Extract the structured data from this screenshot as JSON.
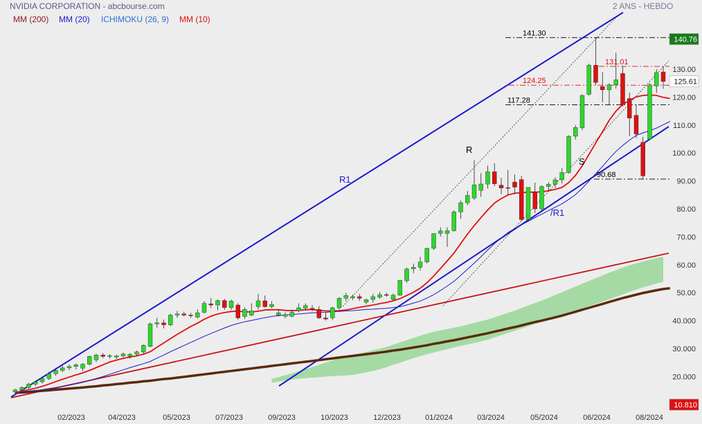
{
  "header": {
    "title": "NVIDIA CORPORATION - abcbourse.com",
    "period": "2 ANS - HEBDO"
  },
  "legend": [
    {
      "label": "MM (200)",
      "color": "#8b1a1a"
    },
    {
      "label": "MM (20)",
      "color": "#1a1acc"
    },
    {
      "label": "ICHIMOKU (26, 9)",
      "color": "#2a6fd6"
    },
    {
      "label": "MM (10)",
      "color": "#e01010"
    }
  ],
  "chart_data": {
    "type": "candlestick",
    "y_axis": {
      "ticks": [
        "130.00",
        "120.00",
        "110.00",
        "100.00",
        "90.00",
        "80.00",
        "70.00",
        "60.00",
        "50.00",
        "40.000",
        "30.000",
        "20.000"
      ],
      "tick_values": [
        130,
        120,
        110,
        100,
        90,
        80,
        70,
        60,
        50,
        40,
        30,
        20
      ],
      "scale": "linear"
    },
    "x_axis": {
      "ticks": [
        "02/2023",
        "04/2023",
        "05/2023",
        "07/2023",
        "09/2023",
        "10/2023",
        "12/2023",
        "01/2024",
        "03/2024",
        "05/2024",
        "06/2024",
        "08/2024"
      ]
    },
    "price_badges": [
      {
        "label": "140.76",
        "value": 140.76,
        "bg": "#1a7a1a"
      },
      {
        "label": "125.61",
        "value": 125.61,
        "bg": "#ffffff"
      },
      {
        "label": "10.810",
        "value": 10.81,
        "bg": "#dd1111"
      }
    ],
    "levels": [
      {
        "label": "141.30",
        "value": 141.3,
        "color": "#000000"
      },
      {
        "label": "131.01",
        "value": 131.01,
        "color": "#dd1111"
      },
      {
        "label": "124.25",
        "value": 124.25,
        "color": "#dd1111"
      },
      {
        "label": "117.28",
        "value": 117.28,
        "color": "#000000"
      },
      {
        "label": "90.68",
        "value": 90.68,
        "color": "#000000"
      }
    ],
    "annotations": [
      {
        "label": "R1",
        "color": "#1a1acc"
      },
      {
        "label": "R",
        "color": "#000000"
      },
      {
        "label": "S",
        "color": "#000000"
      },
      {
        "label": "/R1",
        "color": "#1a1acc"
      }
    ],
    "candles": [
      {
        "o": 14.5,
        "h": 15.6,
        "l": 14.0,
        "c": 15.2
      },
      {
        "o": 15.2,
        "h": 16.5,
        "l": 14.8,
        "c": 16.1
      },
      {
        "o": 16.1,
        "h": 17.8,
        "l": 15.6,
        "c": 17.3
      },
      {
        "o": 17.3,
        "h": 18.5,
        "l": 16.6,
        "c": 18.1
      },
      {
        "o": 18.1,
        "h": 19.8,
        "l": 17.5,
        "c": 19.3
      },
      {
        "o": 19.3,
        "h": 21.6,
        "l": 18.8,
        "c": 21.0
      },
      {
        "o": 21.0,
        "h": 22.8,
        "l": 20.3,
        "c": 22.2
      },
      {
        "o": 22.2,
        "h": 23.8,
        "l": 21.6,
        "c": 23.1
      },
      {
        "o": 23.1,
        "h": 24.3,
        "l": 22.3,
        "c": 23.6
      },
      {
        "o": 23.6,
        "h": 24.7,
        "l": 22.6,
        "c": 24.2
      },
      {
        "o": 23.0,
        "h": 24.8,
        "l": 22.0,
        "c": 24.4
      },
      {
        "o": 24.4,
        "h": 27.5,
        "l": 24.0,
        "c": 27.2
      },
      {
        "o": 26.0,
        "h": 28.2,
        "l": 25.2,
        "c": 27.7
      },
      {
        "o": 27.7,
        "h": 28.4,
        "l": 26.6,
        "c": 27.2
      },
      {
        "o": 27.2,
        "h": 28.0,
        "l": 26.4,
        "c": 27.5
      },
      {
        "o": 27.0,
        "h": 27.8,
        "l": 26.3,
        "c": 27.4
      },
      {
        "o": 27.4,
        "h": 28.6,
        "l": 26.8,
        "c": 28.1
      },
      {
        "o": 27.2,
        "h": 28.4,
        "l": 26.4,
        "c": 28.0
      },
      {
        "o": 28.0,
        "h": 29.3,
        "l": 27.5,
        "c": 28.8
      },
      {
        "o": 28.8,
        "h": 31.5,
        "l": 28.2,
        "c": 31.2
      },
      {
        "o": 30.8,
        "h": 39.4,
        "l": 30.4,
        "c": 38.8
      },
      {
        "o": 38.8,
        "h": 41.0,
        "l": 37.5,
        "c": 39.2
      },
      {
        "o": 39.2,
        "h": 40.4,
        "l": 37.2,
        "c": 38.5
      },
      {
        "o": 38.5,
        "h": 42.5,
        "l": 38.0,
        "c": 42.0
      },
      {
        "o": 42.0,
        "h": 43.5,
        "l": 41.0,
        "c": 42.4
      },
      {
        "o": 42.4,
        "h": 43.2,
        "l": 41.5,
        "c": 42.0
      },
      {
        "o": 42.0,
        "h": 42.8,
        "l": 41.0,
        "c": 41.8
      },
      {
        "o": 41.3,
        "h": 44.0,
        "l": 40.8,
        "c": 42.8
      },
      {
        "o": 43.0,
        "h": 47.0,
        "l": 42.5,
        "c": 46.2
      },
      {
        "o": 46.0,
        "h": 48.1,
        "l": 44.5,
        "c": 45.6
      },
      {
        "o": 45.6,
        "h": 47.6,
        "l": 43.7,
        "c": 47.2
      },
      {
        "o": 47.2,
        "h": 47.8,
        "l": 43.8,
        "c": 44.7
      },
      {
        "o": 44.7,
        "h": 47.5,
        "l": 43.9,
        "c": 47.0
      },
      {
        "o": 45.6,
        "h": 46.3,
        "l": 40.3,
        "c": 41.0
      },
      {
        "o": 41.5,
        "h": 44.7,
        "l": 40.6,
        "c": 44.0
      },
      {
        "o": 42.0,
        "h": 46.2,
        "l": 41.6,
        "c": 43.5
      },
      {
        "o": 45.0,
        "h": 49.6,
        "l": 44.0,
        "c": 47.1
      },
      {
        "o": 47.1,
        "h": 49.0,
        "l": 44.7,
        "c": 45.0
      },
      {
        "o": 45.0,
        "h": 47.0,
        "l": 44.5,
        "c": 45.8
      },
      {
        "o": 42.0,
        "h": 44.0,
        "l": 41.5,
        "c": 42.8
      },
      {
        "o": 41.6,
        "h": 43.0,
        "l": 40.9,
        "c": 42.2
      },
      {
        "o": 41.6,
        "h": 44.0,
        "l": 41.2,
        "c": 43.0
      },
      {
        "o": 43.6,
        "h": 46.2,
        "l": 43.0,
        "c": 44.6
      },
      {
        "o": 44.5,
        "h": 46.2,
        "l": 43.7,
        "c": 45.4
      },
      {
        "o": 44.4,
        "h": 45.6,
        "l": 43.4,
        "c": 44.0
      },
      {
        "o": 44.0,
        "h": 45.2,
        "l": 40.6,
        "c": 41.0
      },
      {
        "o": 41.0,
        "h": 42.8,
        "l": 40.0,
        "c": 40.6
      },
      {
        "o": 41.0,
        "h": 45.0,
        "l": 40.2,
        "c": 44.6
      },
      {
        "o": 44.6,
        "h": 48.4,
        "l": 44.0,
        "c": 48.0
      },
      {
        "o": 48.0,
        "h": 50.0,
        "l": 47.0,
        "c": 49.0
      },
      {
        "o": 48.2,
        "h": 49.3,
        "l": 47.4,
        "c": 48.6
      },
      {
        "o": 48.6,
        "h": 49.6,
        "l": 47.1,
        "c": 48.0
      },
      {
        "o": 46.6,
        "h": 47.9,
        "l": 45.8,
        "c": 47.5
      },
      {
        "o": 47.6,
        "h": 49.6,
        "l": 46.5,
        "c": 48.6
      },
      {
        "o": 48.4,
        "h": 50.3,
        "l": 47.8,
        "c": 49.3
      },
      {
        "o": 49.3,
        "h": 50.0,
        "l": 48.5,
        "c": 49.1
      },
      {
        "o": 47.6,
        "h": 49.7,
        "l": 47.2,
        "c": 49.1
      },
      {
        "o": 49.1,
        "h": 54.6,
        "l": 48.9,
        "c": 54.4
      },
      {
        "o": 54.3,
        "h": 59.0,
        "l": 53.5,
        "c": 58.5
      },
      {
        "o": 58.5,
        "h": 60.4,
        "l": 57.0,
        "c": 59.1
      },
      {
        "o": 59.1,
        "h": 62.8,
        "l": 58.0,
        "c": 61.0
      },
      {
        "o": 61.0,
        "h": 66.1,
        "l": 60.5,
        "c": 65.9
      },
      {
        "o": 65.9,
        "h": 70.7,
        "l": 65.3,
        "c": 71.2
      },
      {
        "o": 71.2,
        "h": 73.4,
        "l": 70.1,
        "c": 72.1
      },
      {
        "o": 71.2,
        "h": 73.4,
        "l": 66.4,
        "c": 72.2
      },
      {
        "o": 72.2,
        "h": 79.5,
        "l": 71.9,
        "c": 78.9
      },
      {
        "o": 78.9,
        "h": 83.0,
        "l": 76.4,
        "c": 82.2
      },
      {
        "o": 82.2,
        "h": 86.4,
        "l": 81.3,
        "c": 84.8
      },
      {
        "o": 83.9,
        "h": 97.4,
        "l": 83.2,
        "c": 88.6
      },
      {
        "o": 86.6,
        "h": 92.8,
        "l": 84.3,
        "c": 88.9
      },
      {
        "o": 88.9,
        "h": 95.5,
        "l": 87.3,
        "c": 93.3
      },
      {
        "o": 93.3,
        "h": 96.3,
        "l": 88.1,
        "c": 89.0
      },
      {
        "o": 88.5,
        "h": 91.1,
        "l": 85.3,
        "c": 87.5
      },
      {
        "o": 87.6,
        "h": 93.9,
        "l": 85.0,
        "c": 87.5
      },
      {
        "o": 89.6,
        "h": 92.3,
        "l": 85.3,
        "c": 87.8
      },
      {
        "o": 90.5,
        "h": 91.8,
        "l": 75.6,
        "c": 76.2
      },
      {
        "o": 76.2,
        "h": 87.7,
        "l": 75.7,
        "c": 87.7
      },
      {
        "o": 86.0,
        "h": 89.4,
        "l": 78.5,
        "c": 80.0
      },
      {
        "o": 80.0,
        "h": 88.4,
        "l": 79.0,
        "c": 88.0
      },
      {
        "o": 88.0,
        "h": 89.5,
        "l": 86.1,
        "c": 88.8
      },
      {
        "o": 88.8,
        "h": 91.3,
        "l": 87.5,
        "c": 90.4
      },
      {
        "o": 90.4,
        "h": 94.6,
        "l": 89.1,
        "c": 93.0
      },
      {
        "o": 93.0,
        "h": 106.3,
        "l": 92.7,
        "c": 106.0
      },
      {
        "o": 106.0,
        "h": 110.0,
        "l": 104.8,
        "c": 109.1
      },
      {
        "o": 109.0,
        "h": 121.0,
        "l": 108.2,
        "c": 120.6
      },
      {
        "o": 121.0,
        "h": 132.0,
        "l": 120.5,
        "c": 131.4
      },
      {
        "o": 131.4,
        "h": 141.3,
        "l": 124.3,
        "c": 125.2
      },
      {
        "o": 123.8,
        "h": 128.9,
        "l": 118.1,
        "c": 122.6
      },
      {
        "o": 122.6,
        "h": 125.0,
        "l": 117.1,
        "c": 124.4
      },
      {
        "o": 124.4,
        "h": 135.9,
        "l": 123.0,
        "c": 126.2
      },
      {
        "o": 128.5,
        "h": 131.0,
        "l": 116.7,
        "c": 117.3
      },
      {
        "o": 119.5,
        "h": 121.6,
        "l": 106.0,
        "c": 112.5
      },
      {
        "o": 113.5,
        "h": 117.4,
        "l": 105.3,
        "c": 106.8
      },
      {
        "o": 103.8,
        "h": 105.8,
        "l": 90.7,
        "c": 91.8
      },
      {
        "o": 105.0,
        "h": 125.0,
        "l": 104.8,
        "c": 124.4
      },
      {
        "o": 124.0,
        "h": 130.0,
        "l": 121.5,
        "c": 128.8
      },
      {
        "o": 129.0,
        "h": 131.0,
        "l": 123.0,
        "c": 125.6
      }
    ],
    "ma10": [
      14.2,
      14.8,
      15.3,
      15.8,
      16.5,
      17.3,
      18.2,
      19.0,
      19.8,
      20.6,
      21.3,
      22.2,
      23.2,
      24.2,
      25.2,
      25.9,
      26.5,
      27.0,
      27.4,
      28.0,
      28.9,
      30.5,
      32.0,
      33.6,
      35.1,
      36.5,
      37.9,
      39.1,
      40.5,
      41.6,
      42.4,
      42.9,
      43.3,
      43.4,
      43.2,
      43.1,
      43.4,
      43.8,
      43.9,
      43.9,
      43.7,
      43.6,
      43.7,
      43.9,
      44.0,
      43.7,
      43.5,
      43.5,
      43.6,
      43.8,
      44.3,
      44.8,
      45.2,
      45.6,
      46.1,
      46.5,
      47.1,
      47.9,
      49.0,
      50.2,
      51.6,
      53.6,
      56.0,
      58.7,
      61.4,
      64.2,
      67.6,
      71.0,
      74.0,
      76.9,
      79.6,
      82.1,
      83.7,
      85.0,
      85.6,
      85.8,
      86.0,
      86.0,
      86.1,
      86.5,
      87.0,
      87.7,
      89.4,
      92.0,
      95.4,
      99.5,
      103.6,
      107.6,
      111.7,
      115.0,
      117.4,
      118.8,
      120.1,
      120.6,
      120.8,
      120.6,
      119.9,
      119.5
    ],
    "ma20": [
      14.0,
      14.3,
      14.6,
      14.9,
      15.3,
      15.7,
      16.1,
      16.5,
      16.9,
      17.4,
      17.9,
      18.6,
      19.3,
      20.0,
      20.8,
      21.6,
      22.4,
      23.2,
      23.9,
      24.6,
      25.4,
      26.6,
      27.7,
      28.9,
      30.0,
      31.1,
      32.2,
      33.3,
      34.4,
      35.4,
      36.4,
      37.4,
      38.3,
      39.0,
      39.6,
      40.1,
      40.6,
      41.1,
      41.5,
      41.8,
      42.0,
      42.2,
      42.4,
      42.6,
      42.8,
      42.9,
      43.0,
      43.2,
      43.3,
      43.5,
      43.6,
      43.8,
      44.0,
      44.1,
      44.3,
      44.4,
      44.7,
      45.0,
      45.6,
      46.3,
      47.0,
      48.1,
      49.3,
      50.8,
      52.4,
      54.1,
      56.2,
      58.4,
      60.6,
      62.9,
      65.3,
      67.6,
      69.6,
      71.5,
      73.0,
      74.3,
      75.6,
      76.9,
      78.1,
      79.4,
      80.6,
      81.8,
      83.4,
      85.1,
      87.4,
      90.0,
      92.6,
      95.2,
      98.0,
      100.6,
      102.7,
      104.6,
      106.3,
      107.2,
      108.0,
      108.9,
      110.1,
      111.3
    ],
    "ma200": [
      14.2,
      14.3,
      14.5,
      14.7,
      14.9,
      15.1,
      15.3,
      15.5,
      15.7,
      15.9,
      16.1,
      16.3,
      16.5,
      16.8,
      17.0,
      17.3,
      17.5,
      17.8,
      18.0,
      18.3,
      18.5,
      18.8,
      19.1,
      19.3,
      19.6,
      19.9,
      20.2,
      20.5,
      20.8,
      21.1,
      21.4,
      21.7,
      22.0,
      22.3,
      22.6,
      22.9,
      23.2,
      23.5,
      23.8,
      24.1,
      24.4,
      24.7,
      25.0,
      25.3,
      25.6,
      25.9,
      26.2,
      26.5,
      26.8,
      27.1,
      27.4,
      27.7,
      28.0,
      28.3,
      28.6,
      28.9,
      29.3,
      29.6,
      30.0,
      30.4,
      30.8,
      31.2,
      31.7,
      32.1,
      32.6,
      33.0,
      33.5,
      34.0,
      34.5,
      35.0,
      35.5,
      36.1,
      36.6,
      37.2,
      37.7,
      38.3,
      38.9,
      39.5,
      40.0,
      40.6,
      41.2,
      41.8,
      42.5,
      43.2,
      43.9,
      44.6,
      45.3,
      46.0,
      46.7,
      47.4,
      48.1,
      48.7,
      49.3,
      49.9,
      50.4,
      50.9,
      51.3,
      51.6
    ],
    "cloud_top": [
      null,
      null,
      null,
      null,
      null,
      null,
      null,
      null,
      null,
      null,
      null,
      null,
      null,
      null,
      null,
      null,
      null,
      null,
      null,
      null,
      null,
      null,
      null,
      null,
      null,
      null,
      null,
      null,
      null,
      null,
      null,
      null,
      null,
      null,
      null,
      null,
      null,
      null,
      19.2,
      19.8,
      20.5,
      21.2,
      21.9,
      22.7,
      23.4,
      24.2,
      25.0,
      25.8,
      26.6,
      27.2,
      27.8,
      28.3,
      28.8,
      29.4,
      30.0,
      30.6,
      31.4,
      32.2,
      33.0,
      33.8,
      34.6,
      35.4,
      36.0,
      36.5,
      37.0,
      37.5,
      38.0,
      38.6,
      39.2,
      39.8,
      40.4,
      41.2,
      42.0,
      42.8,
      43.6,
      44.5,
      45.4,
      46.3,
      47.2,
      48.2,
      49.2,
      50.2,
      51.2,
      52.2,
      53.2,
      54.2,
      55.2,
      56.2,
      57.2,
      58.1,
      59.0,
      59.8,
      60.5,
      61.2,
      61.8,
      62.4,
      62.9,
      63.3
    ],
    "cloud_bottom": [
      null,
      null,
      null,
      null,
      null,
      null,
      null,
      null,
      null,
      null,
      null,
      null,
      null,
      null,
      null,
      null,
      null,
      null,
      null,
      null,
      null,
      null,
      null,
      null,
      null,
      null,
      null,
      null,
      null,
      null,
      null,
      null,
      null,
      null,
      null,
      null,
      null,
      null,
      17.8,
      18.2,
      18.6,
      18.9,
      19.2,
      19.4,
      19.6,
      19.8,
      20.0,
      20.2,
      20.3,
      20.4,
      20.6,
      21.0,
      21.5,
      22.0,
      22.6,
      23.4,
      24.2,
      25.0,
      25.8,
      26.6,
      27.3,
      28.0,
      28.6,
      29.2,
      29.8,
      30.4,
      31.0,
      31.5,
      32.0,
      32.6,
      33.2,
      34.0,
      34.8,
      35.6,
      36.4,
      37.2,
      38.0,
      38.8,
      39.6,
      40.4,
      41.2,
      42.0,
      42.8,
      43.6,
      44.4,
      45.2,
      46.0,
      46.8,
      47.6,
      48.5,
      49.4,
      50.3,
      51.1,
      51.9,
      52.6,
      53.3,
      53.9,
      54.4
    ]
  }
}
